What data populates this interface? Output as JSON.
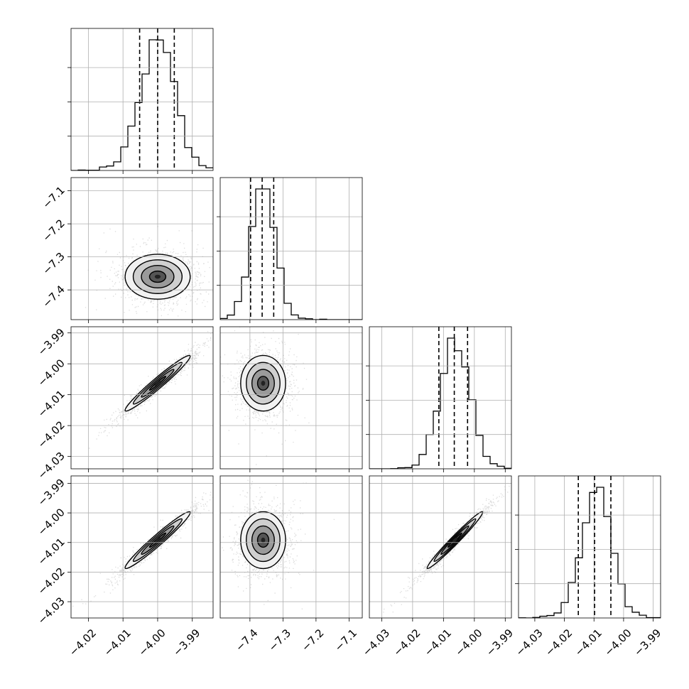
{
  "chart_data": {
    "type": "corner",
    "colors": {
      "ink": "#000000",
      "grid": "#b0b0b0",
      "scatter": "#9a9a9a"
    },
    "grid": true,
    "variables": [
      {
        "range": [
          -4.025,
          -3.984
        ],
        "ticks": [
          "-4.02",
          "-4.01",
          "-4.00",
          "-3.99"
        ],
        "tick_values": [
          -4.02,
          -4.01,
          -4.0,
          -3.99
        ],
        "mean": -4.0,
        "std": 0.0047,
        "quantiles": [
          -4.0052,
          -4.0,
          -3.9952
        ]
      },
      {
        "range": [
          -7.49,
          -7.06
        ],
        "ticks": [
          "-7.4",
          "-7.3",
          "-7.2",
          "-7.1"
        ],
        "tick_values": [
          -7.4,
          -7.3,
          -7.2,
          -7.1
        ],
        "mean": -7.36,
        "std": 0.034,
        "quantiles": [
          -7.398,
          -7.363,
          -7.328
        ]
      },
      {
        "range": [
          -4.034,
          -3.988
        ],
        "ticks": [
          "-4.03",
          "-4.02",
          "-4.01",
          "-4.00",
          "-3.99"
        ],
        "tick_values": [
          -4.03,
          -4.02,
          -4.01,
          -4.0,
          -3.99
        ],
        "mean": -4.0063,
        "std": 0.0045,
        "quantiles": [
          -4.0115,
          -4.0065,
          -4.0022
        ]
      },
      {
        "range": [
          -4.0355,
          -3.9875
        ],
        "ticks": [
          "-4.03",
          "-4.02",
          "-4.01",
          "-4.00",
          "-3.99"
        ],
        "tick_values": [
          -4.03,
          -4.02,
          -4.01,
          -4.0,
          -3.99
        ],
        "mean": -4.0092,
        "std": 0.0048,
        "quantiles": [
          -4.0153,
          -4.0098,
          -4.0043
        ]
      }
    ],
    "correlations": [
      {
        "pair": [
          0,
          1
        ],
        "rho": 0.0
      },
      {
        "pair": [
          0,
          2
        ],
        "rho": 0.97
      },
      {
        "pair": [
          1,
          2
        ],
        "rho": 0.0
      },
      {
        "pair": [
          0,
          3
        ],
        "rho": 0.97
      },
      {
        "pair": [
          1,
          3
        ],
        "rho": 0.0
      },
      {
        "pair": [
          2,
          3
        ],
        "rho": 0.98
      }
    ]
  }
}
